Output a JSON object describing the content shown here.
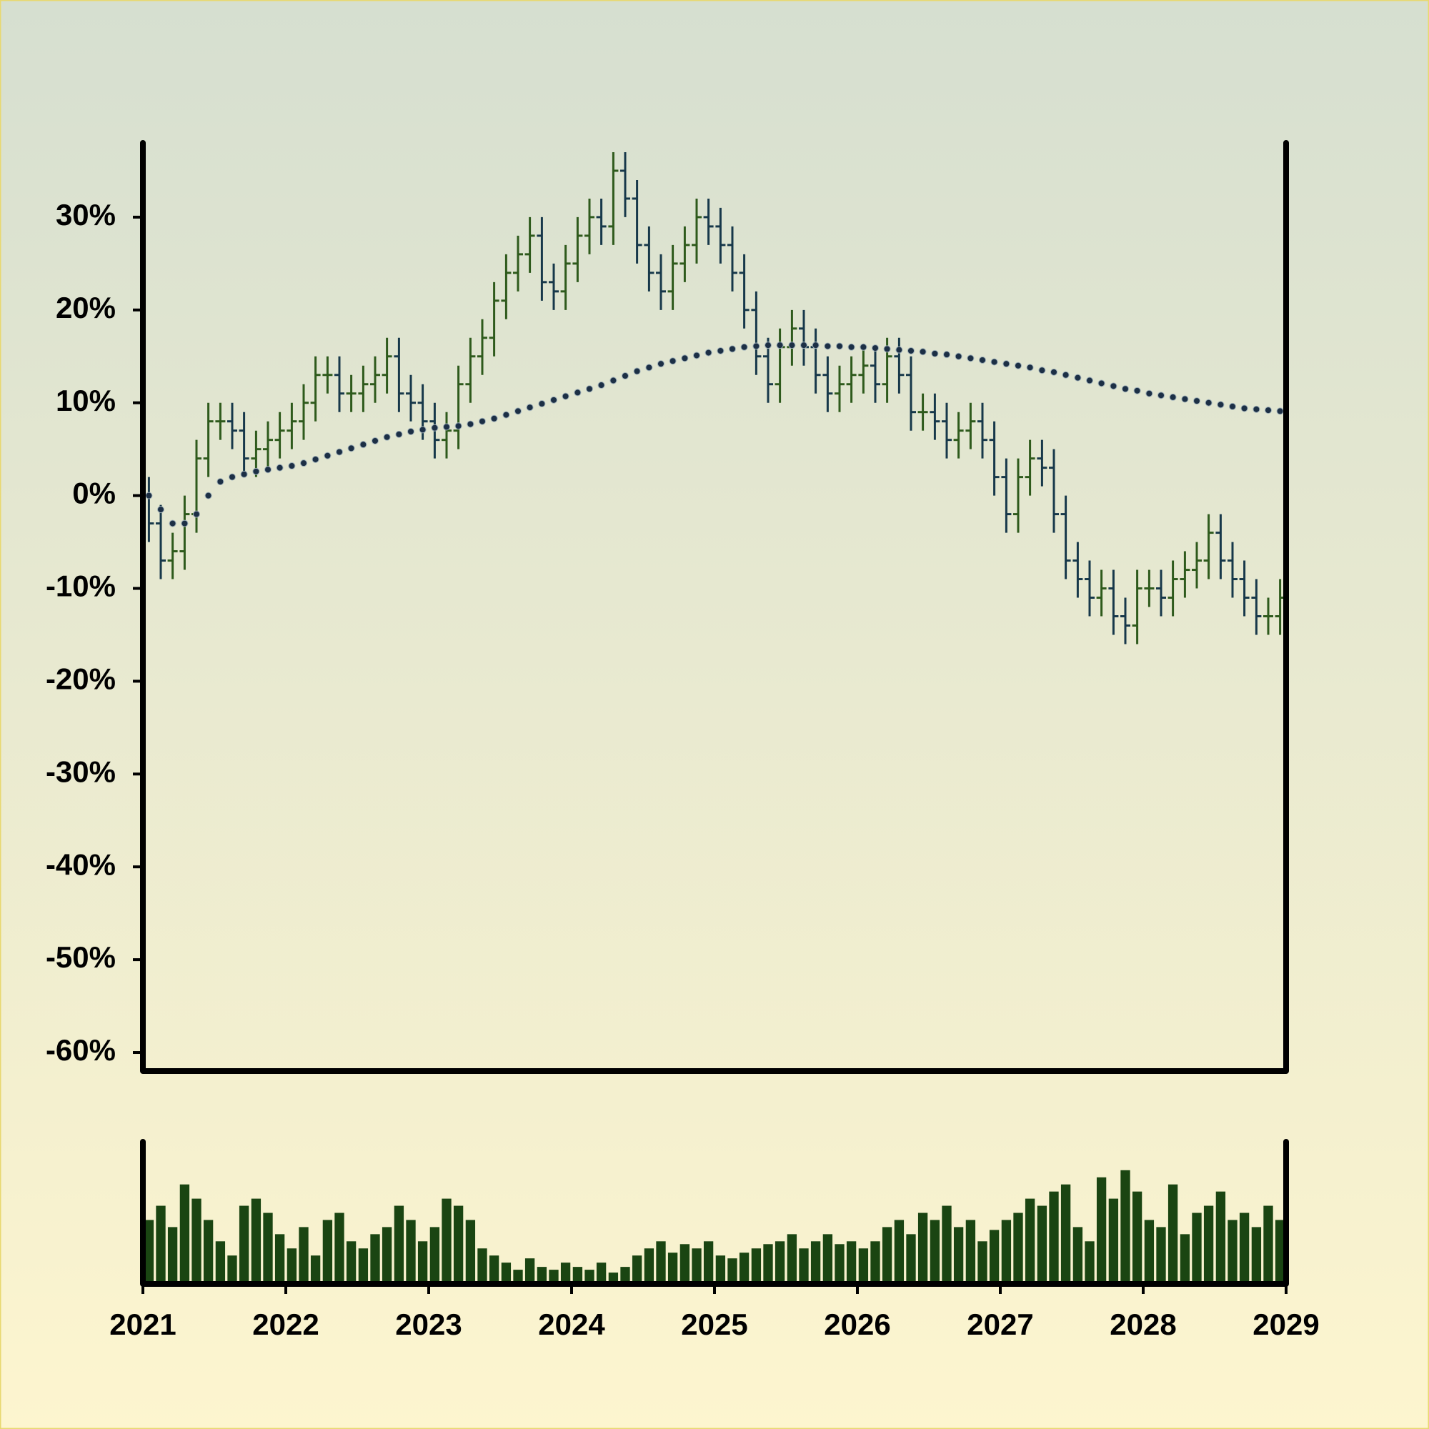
{
  "chart_data": {
    "type": "ohlc",
    "x": [
      2021.042,
      2021.125,
      2021.208,
      2021.292,
      2021.375,
      2021.458,
      2021.542,
      2021.625,
      2021.708,
      2021.792,
      2021.875,
      2021.958,
      2022.042,
      2022.125,
      2022.208,
      2022.292,
      2022.375,
      2022.458,
      2022.542,
      2022.625,
      2022.708,
      2022.792,
      2022.875,
      2022.958,
      2023.042,
      2023.125,
      2023.208,
      2023.292,
      2023.375,
      2023.458,
      2023.542,
      2023.625,
      2023.708,
      2023.792,
      2023.875,
      2023.958,
      2024.042,
      2024.125,
      2024.208,
      2024.292,
      2024.375,
      2024.458,
      2024.542,
      2024.625,
      2024.708,
      2024.792,
      2024.875,
      2024.958,
      2025.042,
      2025.125,
      2025.208,
      2025.292,
      2025.375,
      2025.458,
      2025.542,
      2025.625,
      2025.708,
      2025.792,
      2025.875,
      2025.958,
      2026.042,
      2026.125,
      2026.208,
      2026.292,
      2026.375,
      2026.458,
      2026.542,
      2026.625,
      2026.708,
      2026.792,
      2026.875,
      2026.958,
      2027.042,
      2027.125,
      2027.208,
      2027.292,
      2027.375,
      2027.458,
      2027.542,
      2027.625,
      2027.708,
      2027.792,
      2027.875,
      2027.958,
      2028.042,
      2028.125,
      2028.208,
      2028.292,
      2028.375,
      2028.458,
      2028.542,
      2028.625,
      2028.708,
      2028.792,
      2028.875,
      2028.958
    ],
    "open": [
      0,
      -3,
      -7,
      -6,
      -2,
      4,
      8,
      8,
      7,
      4,
      5,
      6,
      7,
      8,
      10,
      13,
      13,
      11,
      11,
      12,
      13,
      15,
      11,
      10,
      8,
      6,
      7,
      12,
      15,
      17,
      21,
      24,
      26,
      28,
      23,
      22,
      25,
      28,
      30,
      29,
      35,
      32,
      27,
      24,
      22,
      25,
      27,
      30,
      29,
      27,
      24,
      20,
      15,
      12,
      16,
      18,
      16,
      13,
      11,
      12,
      13,
      14,
      12,
      15,
      13,
      9,
      9,
      8,
      6,
      7,
      8,
      6,
      2,
      -2,
      2,
      4,
      3,
      -2,
      -7,
      -9,
      -11,
      -10,
      -13,
      -14,
      -10,
      -10,
      -11,
      -9,
      -8,
      -7,
      -4,
      -7,
      -9,
      -11,
      -13,
      -13
    ],
    "high": [
      2,
      -1,
      -4,
      0,
      6,
      10,
      10,
      10,
      9,
      7,
      8,
      9,
      10,
      12,
      15,
      15,
      15,
      13,
      14,
      15,
      17,
      17,
      13,
      12,
      10,
      9,
      14,
      17,
      19,
      23,
      26,
      28,
      30,
      30,
      25,
      27,
      30,
      32,
      32,
      37,
      37,
      34,
      29,
      26,
      27,
      29,
      32,
      32,
      31,
      29,
      26,
      22,
      17,
      18,
      20,
      20,
      18,
      15,
      14,
      15,
      16,
      16,
      17,
      17,
      15,
      11,
      11,
      10,
      9,
      10,
      10,
      8,
      4,
      4,
      6,
      6,
      5,
      0,
      -5,
      -7,
      -8,
      -8,
      -11,
      -8,
      -8,
      -8,
      -7,
      -6,
      -5,
      -2,
      -2,
      -5,
      -7,
      -9,
      -11,
      -9
    ],
    "low": [
      -5,
      -9,
      -9,
      -8,
      -4,
      2,
      6,
      5,
      2,
      2,
      3,
      4,
      5,
      6,
      8,
      11,
      9,
      9,
      9,
      10,
      11,
      9,
      8,
      6,
      4,
      4,
      5,
      10,
      13,
      15,
      19,
      22,
      24,
      21,
      20,
      20,
      23,
      26,
      27,
      27,
      30,
      25,
      22,
      20,
      20,
      23,
      25,
      27,
      25,
      22,
      18,
      13,
      10,
      10,
      14,
      14,
      11,
      9,
      9,
      10,
      11,
      10,
      10,
      11,
      7,
      7,
      6,
      4,
      4,
      5,
      4,
      0,
      -4,
      -4,
      0,
      1,
      -4,
      -9,
      -11,
      -13,
      -13,
      -15,
      -16,
      -16,
      -12,
      -13,
      -13,
      -11,
      -10,
      -9,
      -9,
      -11,
      -13,
      -15,
      -15,
      -15
    ],
    "close": [
      -3,
      -7,
      -6,
      -2,
      4,
      8,
      8,
      7,
      4,
      5,
      6,
      7,
      8,
      10,
      13,
      13,
      11,
      11,
      12,
      13,
      15,
      11,
      10,
      8,
      6,
      7,
      12,
      15,
      17,
      21,
      24,
      26,
      28,
      23,
      22,
      25,
      28,
      30,
      29,
      35,
      32,
      27,
      24,
      22,
      25,
      27,
      30,
      29,
      27,
      24,
      20,
      15,
      12,
      16,
      18,
      16,
      13,
      11,
      12,
      13,
      14,
      12,
      15,
      13,
      9,
      9,
      8,
      6,
      7,
      8,
      6,
      2,
      -2,
      2,
      4,
      3,
      -2,
      -7,
      -9,
      -11,
      -10,
      -13,
      -14,
      -10,
      -10,
      -11,
      -9,
      -8,
      -7,
      -4,
      -7,
      -9,
      -11,
      -13,
      -13,
      -11
    ],
    "up_color": "#2e5a1c",
    "down_color": "#17384a",
    "trend": {
      "color": "#1c2f45",
      "values": [
        0,
        -1.5,
        -3,
        -3,
        -2,
        0,
        1.5,
        2,
        2.3,
        2.6,
        2.8,
        3,
        3.2,
        3.5,
        3.9,
        4.3,
        4.7,
        5.1,
        5.5,
        5.9,
        6.3,
        6.6,
        6.9,
        7.1,
        7.3,
        7.4,
        7.5,
        7.7,
        8,
        8.3,
        8.7,
        9.1,
        9.5,
        9.9,
        10.3,
        10.7,
        11.1,
        11.5,
        11.9,
        12.4,
        12.9,
        13.4,
        13.8,
        14.2,
        14.5,
        14.8,
        15.1,
        15.4,
        15.6,
        15.8,
        16,
        16.1,
        16.2,
        16.2,
        16.2,
        16.2,
        16.2,
        16.1,
        16.1,
        16,
        16,
        15.9,
        15.8,
        15.7,
        15.6,
        15.5,
        15.3,
        15.2,
        15,
        14.8,
        14.6,
        14.4,
        14.2,
        14,
        13.8,
        13.5,
        13.3,
        13,
        12.7,
        12.4,
        12.1,
        11.8,
        11.5,
        11.3,
        11,
        10.8,
        10.6,
        10.4,
        10.2,
        10,
        9.8,
        9.6,
        9.4,
        9.3,
        9.2,
        9.1
      ]
    },
    "volume": {
      "color": "#1a4512",
      "ylim": [
        0,
        100
      ],
      "values": [
        45,
        55,
        40,
        70,
        60,
        45,
        30,
        20,
        55,
        60,
        50,
        35,
        25,
        40,
        20,
        45,
        50,
        30,
        25,
        35,
        40,
        55,
        45,
        30,
        40,
        60,
        55,
        45,
        25,
        20,
        15,
        10,
        18,
        12,
        10,
        15,
        12,
        10,
        15,
        8,
        12,
        20,
        25,
        30,
        22,
        28,
        25,
        30,
        20,
        18,
        22,
        25,
        28,
        30,
        35,
        25,
        30,
        35,
        28,
        30,
        25,
        30,
        40,
        45,
        35,
        50,
        45,
        55,
        40,
        45,
        30,
        38,
        45,
        50,
        60,
        55,
        65,
        70,
        40,
        30,
        75,
        60,
        80,
        65,
        45,
        40,
        70,
        35,
        50,
        55,
        65,
        45,
        50,
        40,
        55,
        45
      ]
    },
    "xlim": [
      2021,
      2029
    ],
    "xticks": [
      2021,
      2022,
      2023,
      2024,
      2025,
      2026,
      2027,
      2028,
      2029
    ],
    "ylim": [
      -62,
      38
    ],
    "yticks": [
      {
        "value": -60,
        "label": "-60%"
      },
      {
        "value": -50,
        "label": "-50%"
      },
      {
        "value": -40,
        "label": "-40%"
      },
      {
        "value": -30,
        "label": "-30%"
      },
      {
        "value": -20,
        "label": "-20%"
      },
      {
        "value": -10,
        "label": "-10%"
      },
      {
        "value": 0,
        "label": "0%"
      },
      {
        "value": 10,
        "label": "10%"
      },
      {
        "value": 20,
        "label": "20%"
      },
      {
        "value": 30,
        "label": "30%"
      }
    ]
  }
}
